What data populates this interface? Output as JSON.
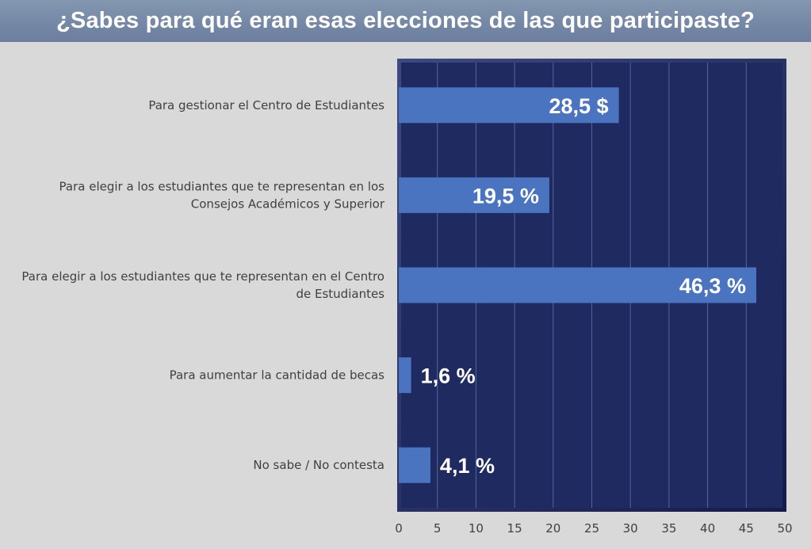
{
  "chart_data": {
    "type": "bar",
    "orientation": "horizontal",
    "title": "¿Sabes para qué eran esas elecciones de las que participaste?",
    "categories": [
      [
        "Para gestionar el Centro de Estudiantes"
      ],
      [
        "Para elegir a los estudiantes que te representan en los",
        "Consejos Académicos y Superior"
      ],
      [
        "Para elegir a los estudiantes que te representan en el Centro",
        "de Estudiantes"
      ],
      [
        "Para aumentar la cantidad de becas"
      ],
      [
        "No sabe / No contesta"
      ]
    ],
    "values": [
      28.5,
      19.5,
      46.3,
      1.6,
      4.1
    ],
    "data_labels": [
      "28,5 $",
      "19,5 %",
      "46,3 %",
      "1,6 %",
      "4,1 %"
    ],
    "xlim": [
      0,
      50
    ],
    "x_ticks": [
      "0",
      "5",
      "10",
      "15",
      "20",
      "25",
      "30",
      "35",
      "40",
      "45",
      "50"
    ],
    "xlabel": "",
    "ylabel": "",
    "grid": true,
    "legend": "none",
    "colors": {
      "bar": "#4a74c0",
      "plot_background": "#1f2a60",
      "gridline": "#5564a0",
      "page_background": "#d9d9d9",
      "title_bar": "#7a8daa"
    }
  }
}
